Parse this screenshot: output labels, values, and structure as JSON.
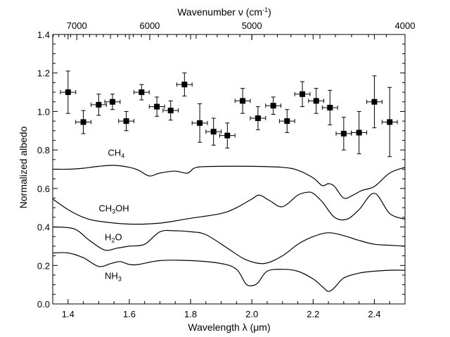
{
  "chart_data": {
    "type": "scatter",
    "xlabel": "Wavelength λ (μm)",
    "ylabel": "Normalized albedo",
    "top_xlabel": "Wavenumber ν (cm",
    "top_xlabel_sup": "-1",
    "top_xlabel_close": ")",
    "xlim": [
      1.35,
      2.5
    ],
    "ylim": [
      0.0,
      1.4
    ],
    "x_ticks": [
      1.4,
      1.6,
      1.8,
      2.0,
      2.2,
      2.4
    ],
    "x_tick_labels": [
      "1.4",
      "1.6",
      "1.8",
      "2.0",
      "2.2",
      "2.4"
    ],
    "y_ticks": [
      0.0,
      0.2,
      0.4,
      0.6,
      0.8,
      1.0,
      1.2,
      1.4
    ],
    "y_tick_labels": [
      "0.0",
      "0.2",
      "0.4",
      "0.6",
      "0.8",
      "1.0",
      "1.2",
      "1.4"
    ],
    "top_ticks": [
      7000,
      6000,
      5000,
      4000
    ],
    "top_tick_labels": [
      "7000",
      "6000",
      "5000",
      "4000"
    ],
    "grid": false,
    "observations": {
      "x": [
        1.4,
        1.45,
        1.5,
        1.545,
        1.59,
        1.64,
        1.69,
        1.735,
        1.78,
        1.83,
        1.875,
        1.92,
        1.97,
        2.02,
        2.07,
        2.115,
        2.165,
        2.21,
        2.255,
        2.3,
        2.35,
        2.4,
        2.45
      ],
      "y": [
        1.1,
        0.945,
        1.035,
        1.05,
        0.95,
        1.1,
        1.025,
        1.005,
        1.14,
        0.94,
        0.895,
        0.875,
        1.055,
        0.965,
        1.03,
        0.95,
        1.09,
        1.055,
        1.02,
        0.885,
        0.89,
        1.05,
        0.945
      ],
      "xerr": [
        0.025,
        0.025,
        0.025,
        0.025,
        0.025,
        0.025,
        0.025,
        0.025,
        0.025,
        0.025,
        0.025,
        0.025,
        0.025,
        0.025,
        0.025,
        0.025,
        0.025,
        0.025,
        0.025,
        0.025,
        0.025,
        0.025,
        0.025
      ],
      "yerr": [
        0.11,
        0.06,
        0.055,
        0.04,
        0.05,
        0.04,
        0.05,
        0.05,
        0.06,
        0.1,
        0.07,
        0.065,
        0.065,
        0.06,
        0.045,
        0.06,
        0.065,
        0.065,
        0.09,
        0.085,
        0.11,
        0.135,
        0.18
      ]
    },
    "series": [
      {
        "name": "CH4",
        "label_main": "CH",
        "label_sub": "4",
        "label_suffix": "",
        "x": [
          1.35,
          1.4,
          1.45,
          1.5,
          1.55,
          1.6,
          1.63,
          1.665,
          1.7,
          1.75,
          1.79,
          1.82,
          1.9,
          2.0,
          2.1,
          2.15,
          2.2,
          2.23,
          2.25,
          2.27,
          2.3,
          2.33,
          2.36,
          2.4,
          2.45,
          2.5
        ],
        "y": [
          0.7,
          0.7,
          0.705,
          0.715,
          0.72,
          0.71,
          0.695,
          0.665,
          0.68,
          0.69,
          0.68,
          0.71,
          0.715,
          0.715,
          0.71,
          0.695,
          0.655,
          0.615,
          0.625,
          0.61,
          0.55,
          0.565,
          0.59,
          0.61,
          0.68,
          0.71
        ]
      },
      {
        "name": "CH3OH",
        "label_main": "CH",
        "label_sub": "3",
        "label_suffix": "OH",
        "x": [
          1.35,
          1.4,
          1.45,
          1.5,
          1.6,
          1.7,
          1.8,
          1.9,
          1.95,
          2.0,
          2.025,
          2.06,
          2.1,
          2.15,
          2.18,
          2.2,
          2.23,
          2.27,
          2.31,
          2.35,
          2.4,
          2.45,
          2.5
        ],
        "y": [
          0.545,
          0.49,
          0.45,
          0.43,
          0.415,
          0.42,
          0.445,
          0.47,
          0.5,
          0.545,
          0.565,
          0.535,
          0.505,
          0.565,
          0.58,
          0.575,
          0.53,
          0.45,
          0.44,
          0.49,
          0.575,
          0.47,
          0.44
        ]
      },
      {
        "name": "H2O",
        "label_main": "H",
        "label_sub": "2",
        "label_suffix": "O",
        "x": [
          1.35,
          1.42,
          1.47,
          1.52,
          1.56,
          1.6,
          1.65,
          1.7,
          1.75,
          1.8,
          1.85,
          1.92,
          1.98,
          2.04,
          2.1,
          2.15,
          2.2,
          2.25,
          2.3,
          2.35,
          2.4,
          2.45,
          2.5
        ],
        "y": [
          0.4,
          0.39,
          0.33,
          0.28,
          0.29,
          0.3,
          0.31,
          0.375,
          0.38,
          0.375,
          0.36,
          0.29,
          0.23,
          0.21,
          0.25,
          0.31,
          0.35,
          0.37,
          0.355,
          0.33,
          0.31,
          0.305,
          0.3
        ]
      },
      {
        "name": "NH3",
        "label_main": "NH",
        "label_sub": "3",
        "label_suffix": "",
        "x": [
          1.35,
          1.4,
          1.45,
          1.5,
          1.54,
          1.57,
          1.6,
          1.63,
          1.7,
          1.8,
          1.9,
          1.95,
          1.98,
          2.0,
          2.02,
          2.05,
          2.1,
          2.15,
          2.2,
          2.23,
          2.25,
          2.27,
          2.3,
          2.35,
          2.4,
          2.45,
          2.5
        ],
        "y": [
          0.265,
          0.265,
          0.24,
          0.195,
          0.21,
          0.22,
          0.205,
          0.205,
          0.225,
          0.225,
          0.21,
          0.18,
          0.105,
          0.095,
          0.11,
          0.17,
          0.18,
          0.17,
          0.13,
          0.09,
          0.065,
          0.085,
          0.135,
          0.16,
          0.17,
          0.175,
          0.175
        ]
      }
    ]
  }
}
